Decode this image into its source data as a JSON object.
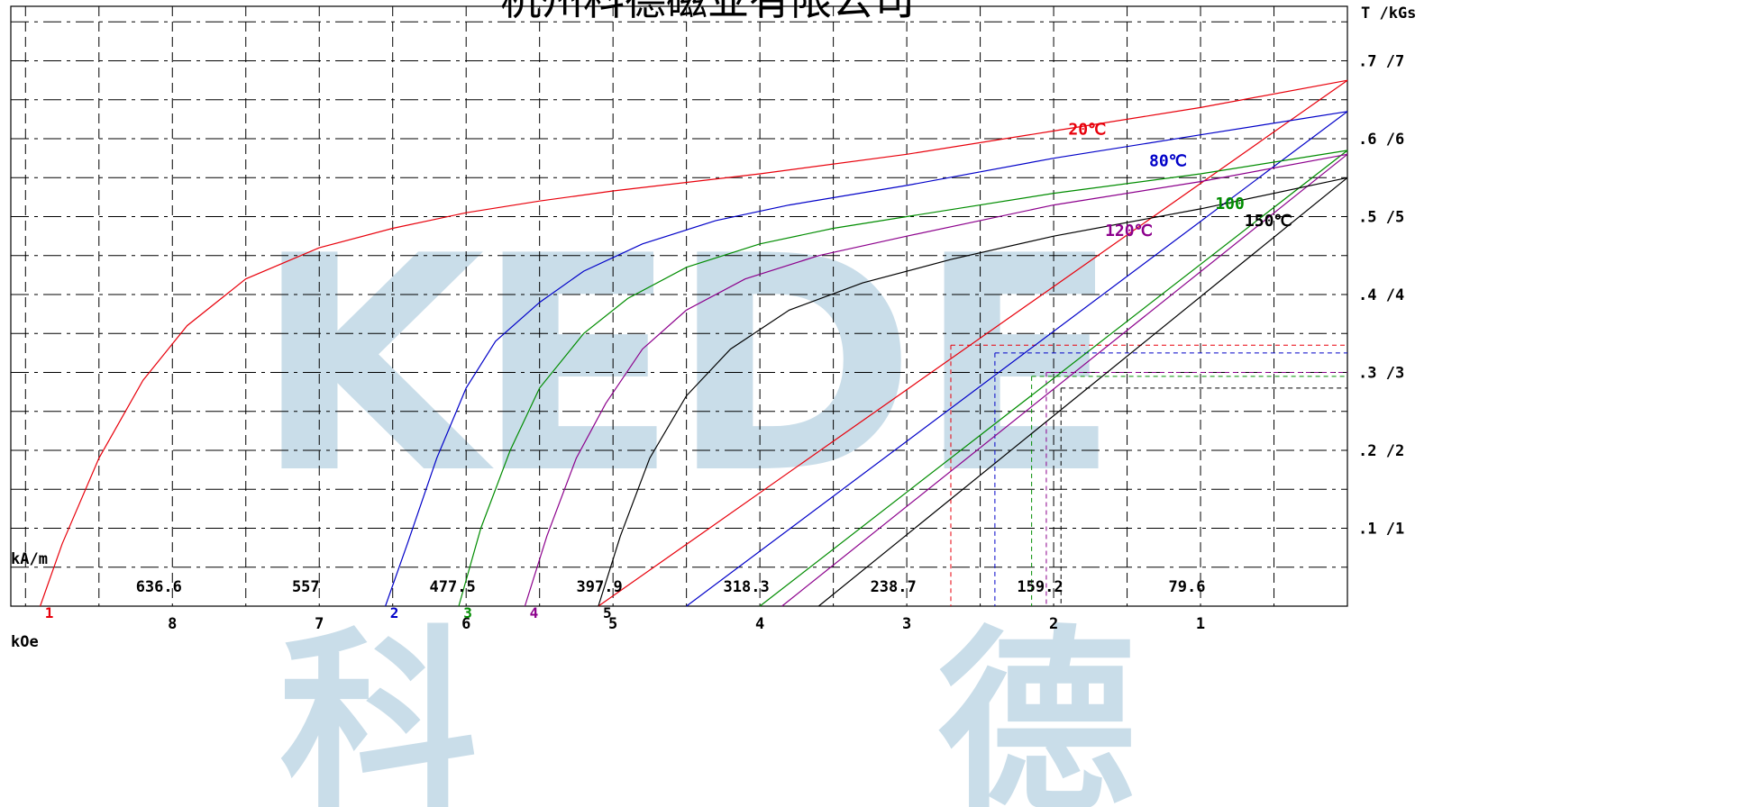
{
  "company": "杭州科德磁业有限公司",
  "watermark": {
    "letters": "KEDE",
    "characters": [
      "科",
      "德"
    ],
    "color": "#c9dde9"
  },
  "chart_data": {
    "type": "line",
    "title": "杭州科德磁业有限公司",
    "x_axis": {
      "unit_koe": "kOe",
      "unit_kam": "kA/m",
      "range_koe": [
        0,
        9.1
      ],
      "koe_ticks": [
        {
          "value": 8,
          "label": "8"
        },
        {
          "value": 7,
          "label": "7"
        },
        {
          "value": 6,
          "label": "6"
        },
        {
          "value": 5,
          "label": "5"
        },
        {
          "value": 4,
          "label": "4"
        },
        {
          "value": 3,
          "label": "3"
        },
        {
          "value": 2,
          "label": "2"
        },
        {
          "value": 1,
          "label": "1"
        }
      ],
      "kam_ticks": [
        {
          "value": 636.6,
          "label": "636.6"
        },
        {
          "value": 557,
          "label": "557"
        },
        {
          "value": 477.5,
          "label": "477.5"
        },
        {
          "value": 397.9,
          "label": "397.9"
        },
        {
          "value": 318.3,
          "label": "318.3"
        },
        {
          "value": 238.7,
          "label": "238.7"
        },
        {
          "value": 159.2,
          "label": "159.2"
        },
        {
          "value": 79.6,
          "label": "79.6"
        }
      ]
    },
    "y_axis": {
      "unit": "T /kGs",
      "range": [
        0,
        7.7
      ],
      "ticks": [
        {
          "value": 1,
          "label": ".1 /1"
        },
        {
          "value": 2,
          "label": ".2 /2"
        },
        {
          "value": 3,
          "label": ".3 /3"
        },
        {
          "value": 4,
          "label": ".4 /4"
        },
        {
          "value": 5,
          "label": ".5 /5"
        },
        {
          "value": 6,
          "label": ".6 /6"
        },
        {
          "value": 7,
          "label": ".7 /7"
        }
      ]
    },
    "grid": "dashed",
    "series": [
      {
        "name": "20℃",
        "color": "#e8000b",
        "marker": "1",
        "points": [
          [
            8.9,
            0
          ],
          [
            8.75,
            0.8
          ],
          [
            8.5,
            1.9
          ],
          [
            8.2,
            2.9
          ],
          [
            7.9,
            3.6
          ],
          [
            7.5,
            4.2
          ],
          [
            7.0,
            4.6
          ],
          [
            6.5,
            4.85
          ],
          [
            6.0,
            5.05
          ],
          [
            5.5,
            5.2
          ],
          [
            5.0,
            5.33
          ],
          [
            4.0,
            5.55
          ],
          [
            3.0,
            5.8
          ],
          [
            2.0,
            6.1
          ],
          [
            1.0,
            6.4
          ],
          [
            0.0,
            6.75
          ]
        ],
        "recoil": [
          [
            5.1,
            0
          ],
          [
            0.0,
            6.75
          ]
        ]
      },
      {
        "name": "80℃",
        "color": "#0000c8",
        "marker": "2",
        "points": [
          [
            6.55,
            0
          ],
          [
            6.4,
            0.8
          ],
          [
            6.2,
            1.9
          ],
          [
            6.0,
            2.8
          ],
          [
            5.8,
            3.4
          ],
          [
            5.5,
            3.9
          ],
          [
            5.2,
            4.3
          ],
          [
            4.8,
            4.65
          ],
          [
            4.3,
            4.95
          ],
          [
            3.8,
            5.15
          ],
          [
            3.0,
            5.4
          ],
          [
            2.0,
            5.75
          ],
          [
            1.0,
            6.05
          ],
          [
            0.0,
            6.35
          ]
        ],
        "recoil": [
          [
            4.5,
            0
          ],
          [
            0.0,
            6.35
          ]
        ]
      },
      {
        "name": "100",
        "color": "#008c00",
        "marker": "3",
        "points": [
          [
            6.05,
            0
          ],
          [
            5.9,
            1.0
          ],
          [
            5.7,
            2.0
          ],
          [
            5.5,
            2.8
          ],
          [
            5.2,
            3.5
          ],
          [
            4.9,
            3.95
          ],
          [
            4.5,
            4.35
          ],
          [
            4.0,
            4.65
          ],
          [
            3.5,
            4.85
          ],
          [
            3.0,
            5.0
          ],
          [
            2.0,
            5.3
          ],
          [
            1.0,
            5.55
          ],
          [
            0.0,
            5.85
          ]
        ],
        "recoil": [
          [
            4.0,
            0
          ],
          [
            0.0,
            5.85
          ]
        ]
      },
      {
        "name": "120℃",
        "color": "#8c008c",
        "marker": "4",
        "points": [
          [
            5.6,
            0
          ],
          [
            5.45,
            0.9
          ],
          [
            5.25,
            1.9
          ],
          [
            5.05,
            2.6
          ],
          [
            4.8,
            3.3
          ],
          [
            4.5,
            3.8
          ],
          [
            4.1,
            4.2
          ],
          [
            3.6,
            4.5
          ],
          [
            3.0,
            4.75
          ],
          [
            2.0,
            5.15
          ],
          [
            1.0,
            5.45
          ],
          [
            0.0,
            5.8
          ]
        ],
        "recoil": [
          [
            3.85,
            0
          ],
          [
            0.0,
            5.8
          ]
        ]
      },
      {
        "name": "150℃",
        "color": "#000000",
        "marker": "5",
        "points": [
          [
            5.1,
            0
          ],
          [
            4.95,
            0.9
          ],
          [
            4.75,
            1.9
          ],
          [
            4.5,
            2.7
          ],
          [
            4.2,
            3.3
          ],
          [
            3.8,
            3.8
          ],
          [
            3.3,
            4.15
          ],
          [
            2.7,
            4.45
          ],
          [
            2.0,
            4.75
          ],
          [
            1.0,
            5.1
          ],
          [
            0.0,
            5.5
          ]
        ],
        "recoil": [
          [
            3.6,
            0
          ],
          [
            0.0,
            5.5
          ]
        ]
      }
    ],
    "operating_points": [
      {
        "color": "#e8000b",
        "h": 2.7,
        "b": 3.35
      },
      {
        "color": "#0000c8",
        "h": 2.4,
        "b": 3.25
      },
      {
        "color": "#008c00",
        "h": 2.15,
        "b": 2.95
      },
      {
        "color": "#8c008c",
        "h": 2.05,
        "b": 3.0
      },
      {
        "color": "#000000",
        "h": 1.95,
        "b": 2.8
      }
    ]
  }
}
